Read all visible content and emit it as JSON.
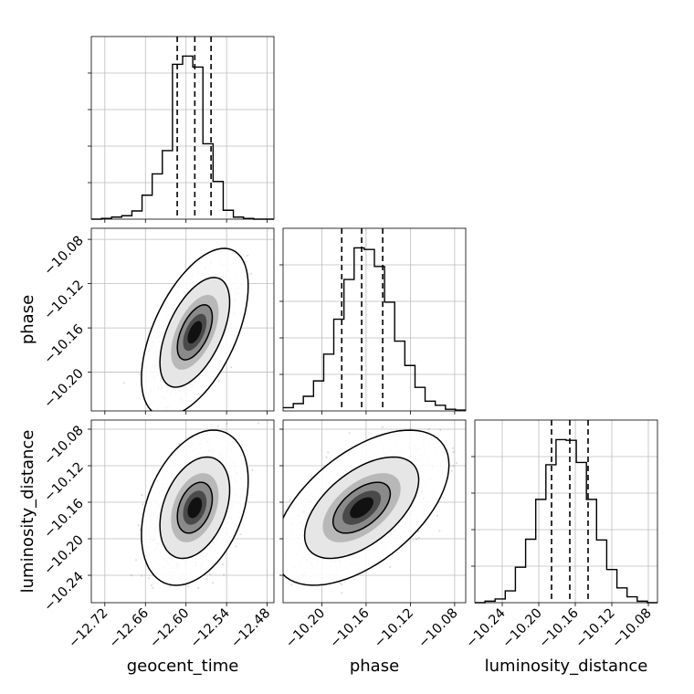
{
  "chart_data": {
    "type": "corner",
    "parameters": [
      "geocent_time",
      "phase",
      "luminosity_distance"
    ],
    "axes": {
      "geocent_time": {
        "range": [
          -12.74,
          -12.47
        ],
        "ticks": [
          -12.72,
          -12.66,
          -12.6,
          -12.54,
          -12.48
        ],
        "tick_labels": [
          "−12.72",
          "−12.66",
          "−12.60",
          "−12.54",
          "−12.48"
        ]
      },
      "phase": {
        "range": [
          -10.235,
          -10.07
        ],
        "ticks": [
          -10.2,
          -10.16,
          -10.12,
          -10.08
        ],
        "tick_labels": [
          "−10.20",
          "−10.16",
          "−10.12",
          "−10.08"
        ]
      },
      "luminosity_distance": {
        "range": [
          -10.27,
          -10.07
        ],
        "ticks": [
          -10.24,
          -10.2,
          -10.16,
          -10.12,
          -10.08
        ],
        "tick_labels": [
          "−10.24",
          "−10.20",
          "−10.16",
          "−10.12",
          "−10.08"
        ]
      }
    },
    "marginals": [
      {
        "param": "geocent_time",
        "quantiles": [
          -12.613,
          -12.587,
          -12.563
        ],
        "bins": [
          -12.74,
          -12.725,
          -12.71,
          -12.695,
          -12.68,
          -12.665,
          -12.65,
          -12.635,
          -12.62,
          -12.605,
          -12.59,
          -12.575,
          -12.56,
          -12.545,
          -12.53,
          -12.515,
          -12.5,
          -12.485,
          -12.47
        ],
        "counts": [
          0,
          1,
          3,
          5,
          12,
          35,
          66,
          100,
          226,
          238,
          222,
          110,
          55,
          13,
          3,
          1,
          0,
          0
        ]
      },
      {
        "param": "phase",
        "quantiles": [
          -10.182,
          -10.164,
          -10.145
        ],
        "bins": [
          -10.235,
          -10.2258,
          -10.2167,
          -10.2075,
          -10.1983,
          -10.1892,
          -10.18,
          -10.1708,
          -10.1617,
          -10.1525,
          -10.1433,
          -10.1342,
          -10.125,
          -10.1158,
          -10.1067,
          -10.0975,
          -10.0883,
          -10.0792,
          -10.07
        ],
        "counts": [
          4,
          9,
          18,
          37,
          70,
          113,
          162,
          201,
          199,
          178,
          134,
          86,
          56,
          29,
          12,
          7,
          2,
          1
        ]
      },
      {
        "param": "luminosity_distance",
        "quantiles": [
          -10.186,
          -10.166,
          -10.146
        ],
        "bins": [
          -10.27,
          -10.2589,
          -10.2478,
          -10.2367,
          -10.2256,
          -10.2144,
          -10.2033,
          -10.1922,
          -10.1811,
          -10.17,
          -10.1589,
          -10.1478,
          -10.1367,
          -10.1256,
          -10.1144,
          -10.1033,
          -10.0922,
          -10.0811,
          -10.07
        ],
        "counts": [
          0,
          2,
          5,
          16,
          48,
          86,
          140,
          187,
          221,
          220,
          190,
          140,
          85,
          45,
          20,
          8,
          2,
          0
        ]
      }
    ],
    "joint": [
      {
        "x": "geocent_time",
        "y": "phase",
        "center": [
          -12.587,
          -10.164
        ],
        "sd": [
          0.026,
          0.025
        ],
        "rho": 0.55,
        "contour_levels": [
          0.39,
          0.86,
          0.99
        ]
      },
      {
        "x": "geocent_time",
        "y": "luminosity_distance",
        "center": [
          -12.587,
          -10.166
        ],
        "sd": [
          0.026,
          0.028
        ],
        "rho": 0.35,
        "contour_levels": [
          0.39,
          0.86,
          0.99
        ]
      },
      {
        "x": "phase",
        "y": "luminosity_distance",
        "center": [
          -10.164,
          -10.166
        ],
        "sd": [
          0.026,
          0.028
        ],
        "rho": 0.55,
        "contour_levels": [
          0.39,
          0.86,
          0.99
        ]
      }
    ],
    "grid": true
  }
}
